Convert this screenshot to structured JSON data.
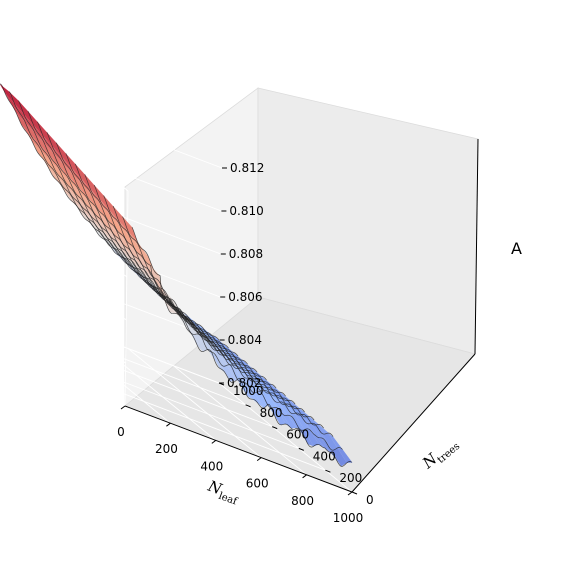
{
  "chart_data": {
    "type": "surface",
    "x_axis": {
      "ticks": [
        0,
        200,
        400,
        600,
        800,
        1000
      ],
      "range": [
        0,
        1000
      ],
      "label_base": "N",
      "label_sub": "leaf"
    },
    "y_axis": {
      "ticks": [
        0,
        200,
        400,
        600,
        800,
        1000
      ],
      "range": [
        0,
        1000
      ],
      "label_base": "N",
      "label_sub": "trees"
    },
    "z_axis": {
      "ticks": [
        "0.802",
        "0.804",
        "0.806",
        "0.808",
        "0.810",
        "0.812"
      ],
      "range": [
        0.802,
        0.812
      ],
      "label": "A"
    },
    "colormap": "coolwarm",
    "grid": true,
    "surface_trend": {
      "peak_value": 0.8112,
      "peak_location": "low N_leaf, high N_trees",
      "min_value": 0.803,
      "min_location": "high N_leaf, low N_trees"
    }
  }
}
